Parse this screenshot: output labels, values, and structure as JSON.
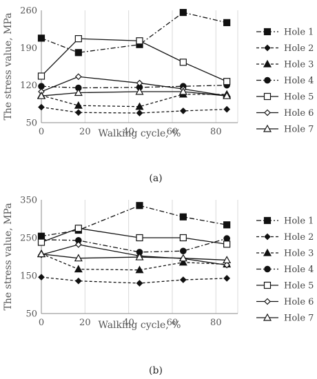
{
  "chart_data": [
    {
      "type": "line",
      "panel_label": "(a)",
      "xlabel": "Walking cycle, %",
      "ylabel": "The stress value, MPa",
      "xlim": [
        0,
        90
      ],
      "ylim": [
        50,
        260
      ],
      "xticks": [
        0,
        20,
        40,
        60,
        80
      ],
      "yticks": [
        50,
        120,
        190,
        260
      ],
      "grid": "vertical",
      "legend_position": "right",
      "x": [
        0,
        17,
        45,
        65,
        85
      ],
      "series": [
        {
          "name": "Hole 1",
          "marker": "filled-square",
          "dash": "dashdot",
          "values": [
            208,
            181,
            196,
            256,
            237
          ]
        },
        {
          "name": "Hole 2",
          "marker": "filled-diamond",
          "dash": "dashed",
          "values": [
            79,
            69,
            68,
            72,
            75
          ]
        },
        {
          "name": "Hole 3",
          "marker": "filled-triangle",
          "dash": "dashed",
          "values": [
            101,
            82,
            80,
            103,
            103
          ]
        },
        {
          "name": "Hole 4",
          "marker": "filled-circle",
          "dash": "dashdot",
          "values": [
            118,
            115,
            116,
            118,
            120
          ]
        },
        {
          "name": "Hole 5",
          "marker": "open-square",
          "dash": "solid",
          "values": [
            137,
            207,
            203,
            163,
            127
          ]
        },
        {
          "name": "Hole 6",
          "marker": "open-diamond",
          "dash": "solid",
          "values": [
            108,
            136,
            124,
            113,
            100
          ]
        },
        {
          "name": "Hole 7",
          "marker": "open-triangle",
          "dash": "solid",
          "values": [
            100,
            106,
            108,
            108,
            100
          ]
        }
      ]
    },
    {
      "type": "line",
      "panel_label": "(b)",
      "xlabel": "Walking cycle, %",
      "ylabel": "The stress value, MPa",
      "xlim": [
        0,
        90
      ],
      "ylim": [
        50,
        350
      ],
      "xticks": [
        0,
        20,
        40,
        60,
        80
      ],
      "yticks": [
        50,
        150,
        250,
        350
      ],
      "grid": "vertical",
      "legend_position": "right",
      "x": [
        0,
        17,
        45,
        65,
        85
      ],
      "series": [
        {
          "name": "Hole 1",
          "marker": "filled-square",
          "dash": "dashdot",
          "values": [
            254,
            270,
            335,
            305,
            284
          ]
        },
        {
          "name": "Hole 2",
          "marker": "filled-diamond",
          "dash": "dashed",
          "values": [
            146,
            136,
            130,
            139,
            143
          ]
        },
        {
          "name": "Hole 3",
          "marker": "filled-triangle",
          "dash": "dashed",
          "values": [
            208,
            167,
            165,
            185,
            180
          ]
        },
        {
          "name": "Hole 4",
          "marker": "filled-circle",
          "dash": "dashdot",
          "values": [
            245,
            243,
            212,
            215,
            248
          ]
        },
        {
          "name": "Hole 5",
          "marker": "open-square",
          "dash": "solid",
          "values": [
            238,
            275,
            250,
            250,
            233
          ]
        },
        {
          "name": "Hole 6",
          "marker": "open-diamond",
          "dash": "solid",
          "values": [
            205,
            232,
            202,
            195,
            178
          ]
        },
        {
          "name": "Hole 7",
          "marker": "open-triangle",
          "dash": "solid",
          "values": [
            207,
            196,
            199,
            196,
            191
          ]
        }
      ]
    }
  ]
}
